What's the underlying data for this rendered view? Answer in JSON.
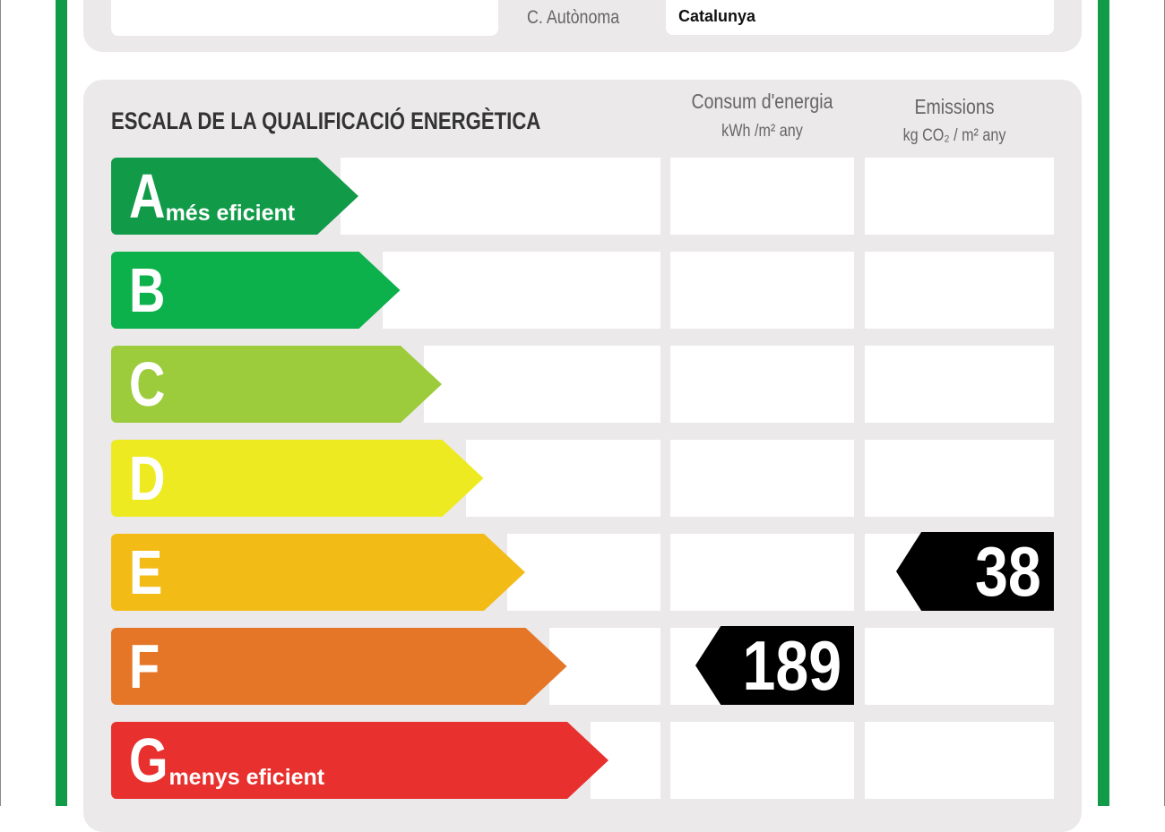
{
  "header": {
    "community_label": "C. Autònoma",
    "community_value": "Catalunya"
  },
  "scale": {
    "title": "ESCALA DE LA QUALIFICACIÓ ENERGÈTICA",
    "energy_col": {
      "title": "Consum d'energia",
      "unit": "kWh /m² any"
    },
    "emissions_col": {
      "title": "Emissions",
      "unit": "kg CO₂ / m² any"
    },
    "classes": [
      {
        "letter": "A",
        "sub": "més eficient",
        "color": "#119a48"
      },
      {
        "letter": "B",
        "sub": "",
        "color": "#0db14b"
      },
      {
        "letter": "C",
        "sub": "",
        "color": "#9ccb3b"
      },
      {
        "letter": "D",
        "sub": "",
        "color": "#eeea22"
      },
      {
        "letter": "E",
        "sub": "",
        "color": "#f3bb16"
      },
      {
        "letter": "F",
        "sub": "",
        "color": "#e57627"
      },
      {
        "letter": "G",
        "sub": "menys eficient",
        "color": "#e8302e"
      }
    ],
    "energy_rating": {
      "class": "F",
      "value": "189"
    },
    "emissions_rating": {
      "class": "E",
      "value": "38"
    }
  }
}
